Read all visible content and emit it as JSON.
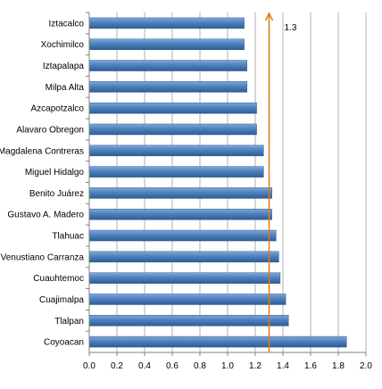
{
  "chart_data": {
    "type": "bar",
    "orientation": "horizontal",
    "categories": [
      "Iztacalco",
      "Xochimilco",
      "Iztapalapa",
      "Milpa Alta",
      "Azcapotzalco",
      "Alavaro Obregon",
      "Magdalena  Contreras",
      "Miguel Hidalgo",
      "Benito Juárez",
      "Gustavo A. Madero",
      "Tlahuac",
      "Venustiano  Carranza",
      "Cuauhtemoc",
      "Cuajimalpa",
      "Tlalpan",
      "Coyoacan"
    ],
    "values": [
      1.12,
      1.12,
      1.14,
      1.14,
      1.21,
      1.21,
      1.26,
      1.26,
      1.32,
      1.32,
      1.35,
      1.37,
      1.38,
      1.42,
      1.44,
      1.86
    ],
    "xlim": [
      0,
      2.0
    ],
    "xticks": [
      "0.0",
      "0.2",
      "0.4",
      "0.6",
      "0.8",
      "1.0",
      "1.2",
      "1.4",
      "1.6",
      "1.8",
      "2.0"
    ],
    "grid": true,
    "reference_line": {
      "value": 1.3,
      "label": "1.3",
      "color": "#E07A10"
    },
    "colors": {
      "bar": "#4F81BD",
      "bar_dark": "#2F5C96",
      "grid": "#B0B0B0",
      "axis": "#808080"
    }
  }
}
